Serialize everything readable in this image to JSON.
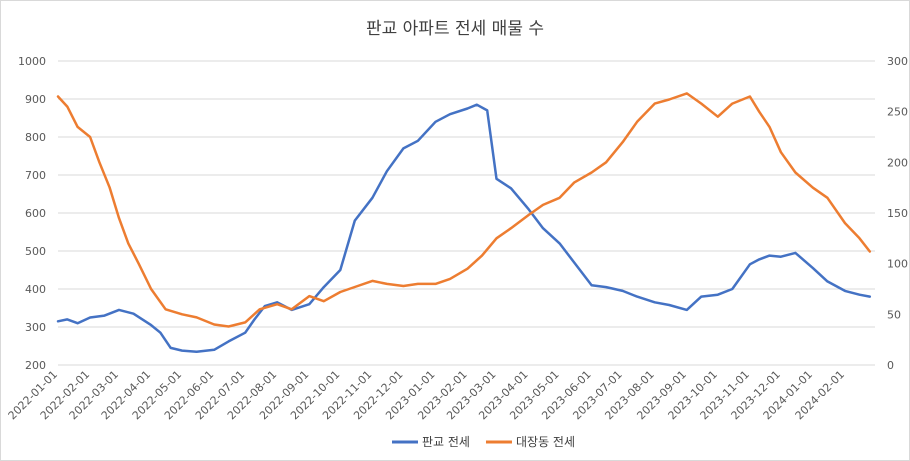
{
  "chart_data": {
    "type": "line",
    "title": "판교 아파트 전세 매물 수",
    "xlabel": "",
    "ylabel": "",
    "y_left": {
      "min": 200,
      "max": 1000,
      "ticks": [
        200,
        300,
        400,
        500,
        600,
        700,
        800,
        900,
        1000
      ]
    },
    "y_right": {
      "min": 0,
      "max": 300,
      "ticks": [
        0,
        50,
        100,
        150,
        200,
        250,
        300
      ]
    },
    "x_range": [
      "2022-01-01",
      "2024-03-01"
    ],
    "x_tick_labels": [
      "2022-01-01",
      "2022-02-01",
      "2022-03-01",
      "2022-04-01",
      "2022-05-01",
      "2022-06-01",
      "2022-07-01",
      "2022-08-01",
      "2022-09-01",
      "2022-10-01",
      "2022-11-01",
      "2022-12-01",
      "2023-01-01",
      "2023-02-01",
      "2023-03-01",
      "2023-04-01",
      "2023-05-01",
      "2023-06-01",
      "2023-07-01",
      "2023-08-01",
      "2023-09-01",
      "2023-10-01",
      "2023-11-01",
      "2023-12-01",
      "2024-01-01",
      "2024-02-01"
    ],
    "grid": true,
    "legend": "bottom",
    "series": [
      {
        "name": "판교 전세",
        "axis": "left",
        "color": "#4472C4",
        "points": [
          [
            "2022-01-01",
            315
          ],
          [
            "2022-01-10",
            320
          ],
          [
            "2022-01-20",
            310
          ],
          [
            "2022-02-01",
            325
          ],
          [
            "2022-02-15",
            330
          ],
          [
            "2022-03-01",
            345
          ],
          [
            "2022-03-15",
            335
          ],
          [
            "2022-04-01",
            305
          ],
          [
            "2022-04-10",
            285
          ],
          [
            "2022-04-20",
            245
          ],
          [
            "2022-05-01",
            238
          ],
          [
            "2022-05-15",
            235
          ],
          [
            "2022-06-01",
            240
          ],
          [
            "2022-06-15",
            262
          ],
          [
            "2022-07-01",
            285
          ],
          [
            "2022-07-10",
            320
          ],
          [
            "2022-07-20",
            355
          ],
          [
            "2022-08-01",
            365
          ],
          [
            "2022-08-15",
            345
          ],
          [
            "2022-09-01",
            360
          ],
          [
            "2022-09-15",
            405
          ],
          [
            "2022-10-01",
            450
          ],
          [
            "2022-10-15",
            580
          ],
          [
            "2022-11-01",
            640
          ],
          [
            "2022-11-15",
            710
          ],
          [
            "2022-12-01",
            770
          ],
          [
            "2022-12-15",
            790
          ],
          [
            "2023-01-01",
            840
          ],
          [
            "2023-01-15",
            860
          ],
          [
            "2023-02-01",
            875
          ],
          [
            "2023-02-10",
            885
          ],
          [
            "2023-02-20",
            870
          ],
          [
            "2023-03-01",
            690
          ],
          [
            "2023-03-15",
            665
          ],
          [
            "2023-04-01",
            610
          ],
          [
            "2023-04-15",
            560
          ],
          [
            "2023-05-01",
            520
          ],
          [
            "2023-05-15",
            470
          ],
          [
            "2023-06-01",
            410
          ],
          [
            "2023-06-15",
            405
          ],
          [
            "2023-07-01",
            395
          ],
          [
            "2023-07-15",
            380
          ],
          [
            "2023-08-01",
            365
          ],
          [
            "2023-08-15",
            358
          ],
          [
            "2023-09-01",
            345
          ],
          [
            "2023-09-15",
            380
          ],
          [
            "2023-10-01",
            385
          ],
          [
            "2023-10-15",
            400
          ],
          [
            "2023-11-01",
            465
          ],
          [
            "2023-11-10",
            478
          ],
          [
            "2023-11-20",
            488
          ],
          [
            "2023-12-01",
            485
          ],
          [
            "2023-12-15",
            495
          ],
          [
            "2024-01-01",
            455
          ],
          [
            "2024-01-15",
            420
          ],
          [
            "2024-02-01",
            395
          ],
          [
            "2024-02-15",
            385
          ],
          [
            "2024-02-25",
            380
          ]
        ]
      },
      {
        "name": "대장동 전세",
        "axis": "right",
        "color": "#ED7D31",
        "points": [
          [
            "2022-01-01",
            265
          ],
          [
            "2022-01-10",
            255
          ],
          [
            "2022-01-20",
            235
          ],
          [
            "2022-02-01",
            225
          ],
          [
            "2022-02-10",
            200
          ],
          [
            "2022-02-20",
            175
          ],
          [
            "2022-03-01",
            145
          ],
          [
            "2022-03-10",
            120
          ],
          [
            "2022-03-20",
            100
          ],
          [
            "2022-04-01",
            75
          ],
          [
            "2022-04-15",
            55
          ],
          [
            "2022-05-01",
            50
          ],
          [
            "2022-05-15",
            47
          ],
          [
            "2022-06-01",
            40
          ],
          [
            "2022-06-15",
            38
          ],
          [
            "2022-07-01",
            42
          ],
          [
            "2022-07-15",
            55
          ],
          [
            "2022-08-01",
            60
          ],
          [
            "2022-08-15",
            55
          ],
          [
            "2022-09-01",
            68
          ],
          [
            "2022-09-15",
            63
          ],
          [
            "2022-10-01",
            72
          ],
          [
            "2022-10-15",
            77
          ],
          [
            "2022-11-01",
            83
          ],
          [
            "2022-11-15",
            80
          ],
          [
            "2022-12-01",
            78
          ],
          [
            "2022-12-15",
            80
          ],
          [
            "2023-01-01",
            80
          ],
          [
            "2023-01-15",
            85
          ],
          [
            "2023-02-01",
            95
          ],
          [
            "2023-02-15",
            108
          ],
          [
            "2023-03-01",
            125
          ],
          [
            "2023-03-15",
            135
          ],
          [
            "2023-04-01",
            148
          ],
          [
            "2023-04-15",
            158
          ],
          [
            "2023-05-01",
            165
          ],
          [
            "2023-05-15",
            180
          ],
          [
            "2023-06-01",
            190
          ],
          [
            "2023-06-15",
            200
          ],
          [
            "2023-07-01",
            220
          ],
          [
            "2023-07-15",
            240
          ],
          [
            "2023-08-01",
            258
          ],
          [
            "2023-08-15",
            262
          ],
          [
            "2023-09-01",
            268
          ],
          [
            "2023-09-15",
            258
          ],
          [
            "2023-10-01",
            245
          ],
          [
            "2023-10-15",
            258
          ],
          [
            "2023-11-01",
            265
          ],
          [
            "2023-11-10",
            250
          ],
          [
            "2023-11-20",
            235
          ],
          [
            "2023-12-01",
            210
          ],
          [
            "2023-12-15",
            190
          ],
          [
            "2024-01-01",
            175
          ],
          [
            "2024-01-15",
            165
          ],
          [
            "2024-02-01",
            140
          ],
          [
            "2024-02-15",
            125
          ],
          [
            "2024-02-25",
            112
          ]
        ]
      }
    ]
  }
}
